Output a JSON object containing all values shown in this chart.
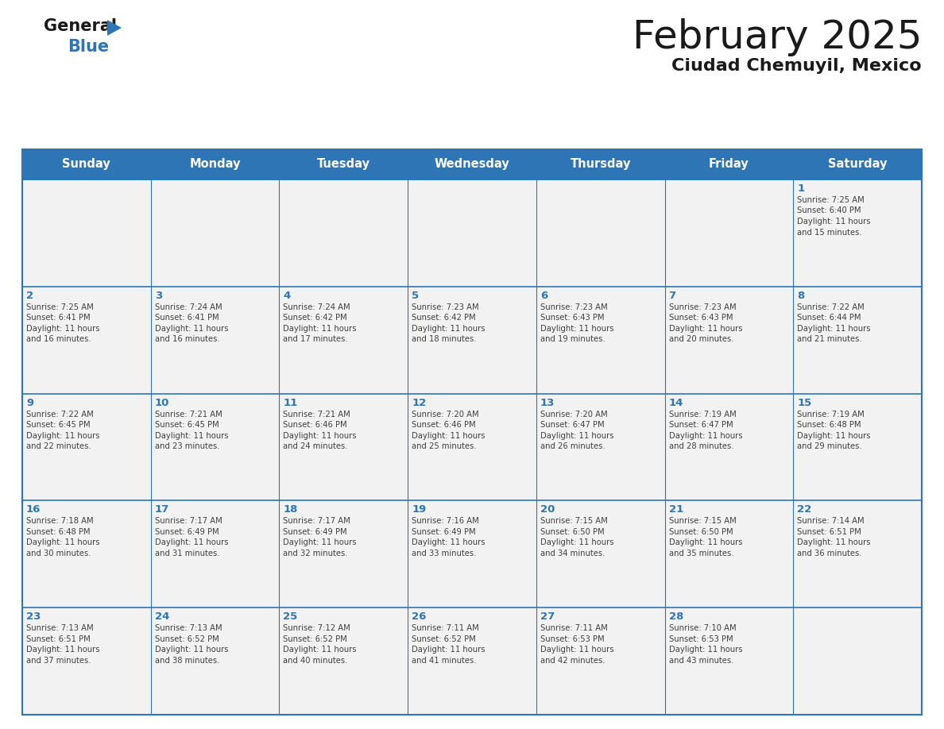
{
  "title": "February 2025",
  "subtitle": "Ciudad Chemuyil, Mexico",
  "header_bg": "#2e75b6",
  "header_text_color": "#ffffff",
  "cell_bg": "#f2f2f2",
  "day_headers": [
    "Sunday",
    "Monday",
    "Tuesday",
    "Wednesday",
    "Thursday",
    "Friday",
    "Saturday"
  ],
  "grid_line_color": "#2e75b6",
  "day_number_color": "#2e75b6",
  "info_text_color": "#404040",
  "title_color": "#1a1a1a",
  "subtitle_color": "#1a1a1a",
  "logo_general_color": "#1a1a1a",
  "logo_blue_color": "#2e75b6",
  "logo_triangle_color": "#2e75b6",
  "calendar": [
    [
      null,
      null,
      null,
      null,
      null,
      null,
      {
        "day": 1,
        "sunrise": "7:25 AM",
        "sunset": "6:40 PM",
        "daylight_l1": "Daylight: 11 hours",
        "daylight_l2": "and 15 minutes."
      }
    ],
    [
      {
        "day": 2,
        "sunrise": "7:25 AM",
        "sunset": "6:41 PM",
        "daylight_l1": "Daylight: 11 hours",
        "daylight_l2": "and 16 minutes."
      },
      {
        "day": 3,
        "sunrise": "7:24 AM",
        "sunset": "6:41 PM",
        "daylight_l1": "Daylight: 11 hours",
        "daylight_l2": "and 16 minutes."
      },
      {
        "day": 4,
        "sunrise": "7:24 AM",
        "sunset": "6:42 PM",
        "daylight_l1": "Daylight: 11 hours",
        "daylight_l2": "and 17 minutes."
      },
      {
        "day": 5,
        "sunrise": "7:23 AM",
        "sunset": "6:42 PM",
        "daylight_l1": "Daylight: 11 hours",
        "daylight_l2": "and 18 minutes."
      },
      {
        "day": 6,
        "sunrise": "7:23 AM",
        "sunset": "6:43 PM",
        "daylight_l1": "Daylight: 11 hours",
        "daylight_l2": "and 19 minutes."
      },
      {
        "day": 7,
        "sunrise": "7:23 AM",
        "sunset": "6:43 PM",
        "daylight_l1": "Daylight: 11 hours",
        "daylight_l2": "and 20 minutes."
      },
      {
        "day": 8,
        "sunrise": "7:22 AM",
        "sunset": "6:44 PM",
        "daylight_l1": "Daylight: 11 hours",
        "daylight_l2": "and 21 minutes."
      }
    ],
    [
      {
        "day": 9,
        "sunrise": "7:22 AM",
        "sunset": "6:45 PM",
        "daylight_l1": "Daylight: 11 hours",
        "daylight_l2": "and 22 minutes."
      },
      {
        "day": 10,
        "sunrise": "7:21 AM",
        "sunset": "6:45 PM",
        "daylight_l1": "Daylight: 11 hours",
        "daylight_l2": "and 23 minutes."
      },
      {
        "day": 11,
        "sunrise": "7:21 AM",
        "sunset": "6:46 PM",
        "daylight_l1": "Daylight: 11 hours",
        "daylight_l2": "and 24 minutes."
      },
      {
        "day": 12,
        "sunrise": "7:20 AM",
        "sunset": "6:46 PM",
        "daylight_l1": "Daylight: 11 hours",
        "daylight_l2": "and 25 minutes."
      },
      {
        "day": 13,
        "sunrise": "7:20 AM",
        "sunset": "6:47 PM",
        "daylight_l1": "Daylight: 11 hours",
        "daylight_l2": "and 26 minutes."
      },
      {
        "day": 14,
        "sunrise": "7:19 AM",
        "sunset": "6:47 PM",
        "daylight_l1": "Daylight: 11 hours",
        "daylight_l2": "and 28 minutes."
      },
      {
        "day": 15,
        "sunrise": "7:19 AM",
        "sunset": "6:48 PM",
        "daylight_l1": "Daylight: 11 hours",
        "daylight_l2": "and 29 minutes."
      }
    ],
    [
      {
        "day": 16,
        "sunrise": "7:18 AM",
        "sunset": "6:48 PM",
        "daylight_l1": "Daylight: 11 hours",
        "daylight_l2": "and 30 minutes."
      },
      {
        "day": 17,
        "sunrise": "7:17 AM",
        "sunset": "6:49 PM",
        "daylight_l1": "Daylight: 11 hours",
        "daylight_l2": "and 31 minutes."
      },
      {
        "day": 18,
        "sunrise": "7:17 AM",
        "sunset": "6:49 PM",
        "daylight_l1": "Daylight: 11 hours",
        "daylight_l2": "and 32 minutes."
      },
      {
        "day": 19,
        "sunrise": "7:16 AM",
        "sunset": "6:49 PM",
        "daylight_l1": "Daylight: 11 hours",
        "daylight_l2": "and 33 minutes."
      },
      {
        "day": 20,
        "sunrise": "7:15 AM",
        "sunset": "6:50 PM",
        "daylight_l1": "Daylight: 11 hours",
        "daylight_l2": "and 34 minutes."
      },
      {
        "day": 21,
        "sunrise": "7:15 AM",
        "sunset": "6:50 PM",
        "daylight_l1": "Daylight: 11 hours",
        "daylight_l2": "and 35 minutes."
      },
      {
        "day": 22,
        "sunrise": "7:14 AM",
        "sunset": "6:51 PM",
        "daylight_l1": "Daylight: 11 hours",
        "daylight_l2": "and 36 minutes."
      }
    ],
    [
      {
        "day": 23,
        "sunrise": "7:13 AM",
        "sunset": "6:51 PM",
        "daylight_l1": "Daylight: 11 hours",
        "daylight_l2": "and 37 minutes."
      },
      {
        "day": 24,
        "sunrise": "7:13 AM",
        "sunset": "6:52 PM",
        "daylight_l1": "Daylight: 11 hours",
        "daylight_l2": "and 38 minutes."
      },
      {
        "day": 25,
        "sunrise": "7:12 AM",
        "sunset": "6:52 PM",
        "daylight_l1": "Daylight: 11 hours",
        "daylight_l2": "and 40 minutes."
      },
      {
        "day": 26,
        "sunrise": "7:11 AM",
        "sunset": "6:52 PM",
        "daylight_l1": "Daylight: 11 hours",
        "daylight_l2": "and 41 minutes."
      },
      {
        "day": 27,
        "sunrise": "7:11 AM",
        "sunset": "6:53 PM",
        "daylight_l1": "Daylight: 11 hours",
        "daylight_l2": "and 42 minutes."
      },
      {
        "day": 28,
        "sunrise": "7:10 AM",
        "sunset": "6:53 PM",
        "daylight_l1": "Daylight: 11 hours",
        "daylight_l2": "and 43 minutes."
      },
      null
    ]
  ]
}
